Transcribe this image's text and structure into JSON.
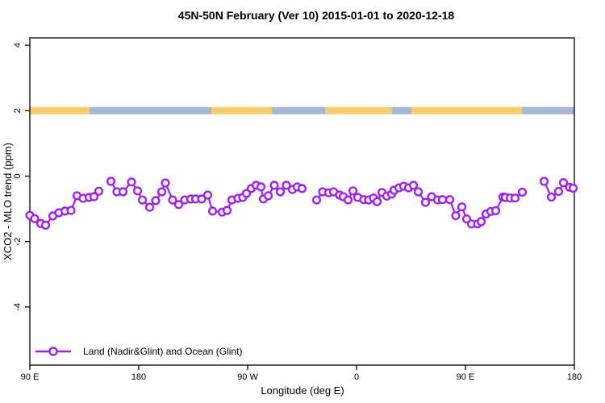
{
  "title": "45N-50N February (Ver 10)  2015-01-01 to 2020-12-18",
  "legend": {
    "label": "Land (Nadir&Glint) and Ocean (Glint)"
  },
  "colors": {
    "line": "#A020F0",
    "marker_fill": "#ffffff",
    "land_band": "#F9CC6D",
    "ocean_band": "#A4B8D6",
    "axis": "#000000",
    "background": "#ffffff"
  },
  "chart_data": {
    "type": "line",
    "title": "45N-50N February (Ver 10)  2015-01-01 to 2020-12-18",
    "xlabel": "Longitude (deg E)",
    "ylabel": "XCO2 - MLO trend (ppm)",
    "x_ticks": [
      "90 E",
      "180",
      "90 W",
      "0",
      "90 E",
      "180"
    ],
    "x_tick_lons": [
      90,
      180,
      270,
      360,
      450,
      540
    ],
    "xlim": [
      90,
      540
    ],
    "y_ticks": [
      4,
      2,
      0,
      -2,
      -4
    ],
    "y_tick_labels": [
      "4",
      "2",
      "0",
      "-2",
      "-4"
    ],
    "ylim": [
      -5.8,
      4.2
    ],
    "grid": false,
    "legend_position": "bottom-left-inside",
    "surface_band": {
      "y_value": 2,
      "note": "band along y=2 showing surface type vs longitude",
      "segments": [
        {
          "from": 90,
          "to": 139.3,
          "surface": "land"
        },
        {
          "from": 139.3,
          "to": 240,
          "surface": "ocean"
        },
        {
          "from": 240,
          "to": 290,
          "surface": "land"
        },
        {
          "from": 290,
          "to": 334,
          "surface": "ocean"
        },
        {
          "from": 334,
          "to": 389.3,
          "surface": "land"
        },
        {
          "from": 389.3,
          "to": 405.3,
          "surface": "ocean"
        },
        {
          "from": 405.3,
          "to": 496.7,
          "surface": "land"
        },
        {
          "from": 496.7,
          "to": 540,
          "surface": "ocean"
        }
      ]
    },
    "series": [
      {
        "name": "Land (Nadir&Glint) and Ocean (Glint)",
        "marker": "open-circle",
        "points_segments": [
          [
            [
              90,
              -1.2
            ],
            [
              94,
              -1.3
            ],
            [
              99,
              -1.45
            ],
            [
              103,
              -1.5
            ],
            [
              109,
              -1.22
            ],
            [
              114,
              -1.12
            ],
            [
              119,
              -1.07
            ],
            [
              124,
              -1.05
            ],
            [
              129,
              -0.6
            ],
            [
              134,
              -0.68
            ],
            [
              139,
              -0.65
            ],
            [
              143,
              -0.63
            ],
            [
              147,
              -0.46
            ]
          ],
          [
            [
              157,
              -0.16
            ],
            [
              162,
              -0.48
            ],
            [
              167,
              -0.48
            ],
            [
              174,
              -0.18
            ],
            [
              179,
              -0.45
            ],
            [
              183,
              -0.73
            ],
            [
              189,
              -0.95
            ],
            [
              194,
              -0.75
            ],
            [
              199,
              -0.48
            ],
            [
              202,
              -0.21
            ],
            [
              208,
              -0.73
            ],
            [
              213,
              -0.87
            ],
            [
              218,
              -0.73
            ],
            [
              223,
              -0.7
            ],
            [
              227,
              -0.7
            ],
            [
              232,
              -0.7
            ],
            [
              237,
              -0.58
            ],
            [
              241,
              -1.07
            ],
            [
              249,
              -1.1
            ],
            [
              253,
              -1.05
            ],
            [
              257,
              -0.73
            ],
            [
              262,
              -0.68
            ],
            [
              266,
              -0.65
            ],
            [
              269,
              -0.53
            ],
            [
              273,
              -0.38
            ],
            [
              277,
              -0.28
            ],
            [
              281,
              -0.33
            ],
            [
              283,
              -0.7
            ],
            [
              287,
              -0.6
            ],
            [
              292,
              -0.28
            ],
            [
              297,
              -0.48
            ],
            [
              302,
              -0.28
            ],
            [
              307,
              -0.41
            ],
            [
              311,
              -0.33
            ],
            [
              315,
              -0.38
            ]
          ],
          [
            [
              327,
              -0.73
            ],
            [
              332,
              -0.48
            ],
            [
              337,
              -0.51
            ],
            [
              341,
              -0.48
            ],
            [
              346,
              -0.58
            ],
            [
              349,
              -0.63
            ],
            [
              353,
              -0.73
            ],
            [
              357,
              -0.45
            ],
            [
              361,
              -0.65
            ],
            [
              366,
              -0.72
            ],
            [
              370,
              -0.73
            ],
            [
              374,
              -0.67
            ],
            [
              377,
              -0.78
            ],
            [
              381,
              -0.5
            ],
            [
              385,
              -0.61
            ],
            [
              389,
              -0.55
            ],
            [
              391,
              -0.43
            ],
            [
              395,
              -0.36
            ],
            [
              399,
              -0.31
            ],
            [
              403,
              -0.36
            ],
            [
              407,
              -0.28
            ],
            [
              411,
              -0.48
            ],
            [
              417,
              -0.8
            ],
            [
              422,
              -0.63
            ],
            [
              427,
              -0.73
            ],
            [
              431,
              -0.72
            ],
            [
              437,
              -0.72
            ],
            [
              442,
              -1.21
            ],
            [
              447,
              -0.94
            ],
            [
              451,
              -1.31
            ],
            [
              455,
              -1.46
            ],
            [
              460,
              -1.46
            ],
            [
              463,
              -1.39
            ],
            [
              467,
              -1.16
            ],
            [
              471,
              -1.08
            ],
            [
              475,
              -1.06
            ],
            [
              481,
              -0.64
            ],
            [
              483,
              -0.65
            ],
            [
              487,
              -0.67
            ],
            [
              491,
              -0.67
            ],
            [
              497,
              -0.49
            ]
          ],
          [
            [
              515,
              -0.16
            ],
            [
              521,
              -0.64
            ],
            [
              527,
              -0.47
            ],
            [
              531,
              -0.2
            ],
            [
              536,
              -0.34
            ],
            [
              539,
              -0.37
            ]
          ]
        ]
      }
    ]
  }
}
